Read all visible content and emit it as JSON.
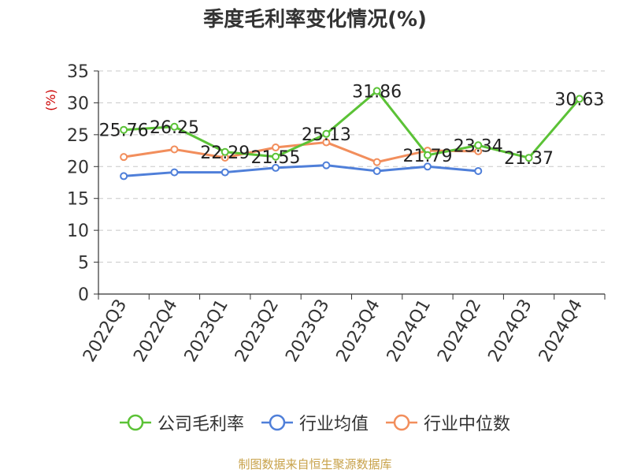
{
  "chart_data": {
    "type": "line",
    "title": "季度毛利率变化情况(%)",
    "ylabel": "(%)",
    "xlabel": "",
    "ylim": [
      0,
      35
    ],
    "yticks": [
      0,
      5,
      10,
      15,
      20,
      25,
      30,
      35
    ],
    "grid": true,
    "legend_position": "bottom",
    "categories": [
      "2022Q3",
      "2022Q4",
      "2023Q1",
      "2023Q2",
      "2023Q3",
      "2023Q4",
      "2024Q1",
      "2024Q2",
      "2024Q3",
      "2024Q4"
    ],
    "series": [
      {
        "name": "公司毛利率",
        "color": "#5bc236",
        "labeled": true,
        "values": [
          25.76,
          26.25,
          22.29,
          21.55,
          25.13,
          31.86,
          21.79,
          23.34,
          21.37,
          30.63
        ]
      },
      {
        "name": "行业均值",
        "color": "#4f7fd9",
        "labeled": false,
        "values": [
          18.5,
          19.1,
          19.1,
          19.8,
          20.2,
          19.3,
          20.0,
          19.3,
          null,
          null
        ]
      },
      {
        "name": "行业中位数",
        "color": "#f28e5c",
        "labeled": false,
        "values": [
          21.5,
          22.7,
          21.4,
          23.0,
          23.8,
          20.7,
          22.5,
          22.4,
          null,
          null
        ]
      }
    ],
    "source": "制图数据来自恒生聚源数据库"
  }
}
